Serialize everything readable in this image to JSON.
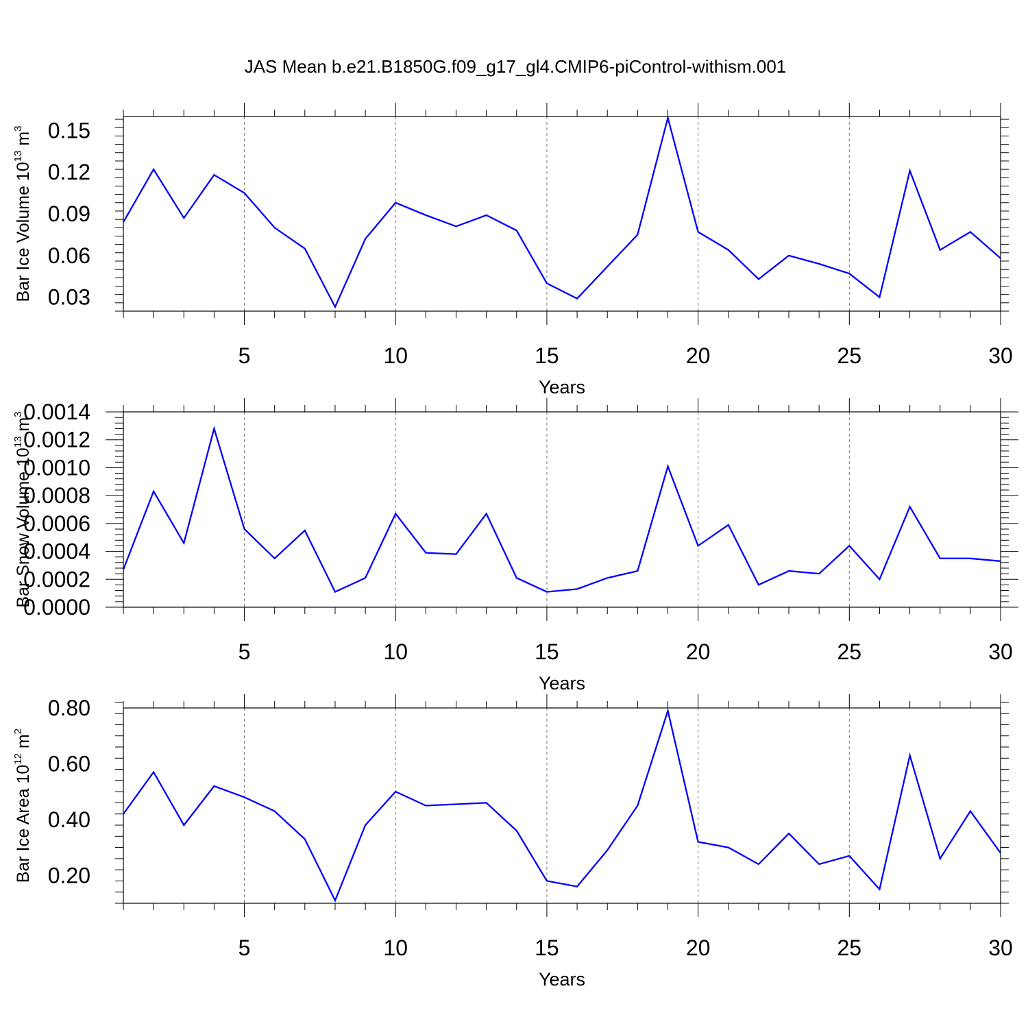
{
  "title": "JAS Mean b.e21.B1850G.f09_g17_gl4.CMIP6-piControl-withism.001",
  "colors": {
    "series": "#0000ff",
    "frame": "#000000",
    "grid": "#777777"
  },
  "chart_data": [
    {
      "type": "line",
      "xlabel": "Years",
      "ylabel": {
        "prefix": "Bar Ice Volume 10",
        "exp": "13",
        "unit": " m",
        "unit_exp": "3"
      },
      "xlim": [
        1,
        30
      ],
      "ylim": [
        0.02,
        0.16
      ],
      "xticks": [
        5,
        10,
        15,
        20,
        25,
        30
      ],
      "xtick_labels": [
        "5",
        "10",
        "15",
        "20",
        "25",
        "30"
      ],
      "yticks": [
        0.03,
        0.06,
        0.09,
        0.12,
        0.15
      ],
      "ytick_labels": [
        "0.03",
        "0.06",
        "0.09",
        "0.12",
        "0.15"
      ],
      "grid": "vertical dashed at major x ticks",
      "x": [
        1,
        2,
        3,
        4,
        5,
        6,
        7,
        8,
        9,
        10,
        11,
        12,
        13,
        14,
        15,
        16,
        17,
        18,
        19,
        20,
        21,
        22,
        23,
        24,
        25,
        26,
        27,
        28,
        29,
        30
      ],
      "y": [
        0.084,
        0.122,
        0.087,
        0.118,
        0.105,
        0.08,
        0.065,
        0.023,
        0.072,
        0.098,
        0.089,
        0.081,
        0.089,
        0.078,
        0.04,
        0.029,
        0.052,
        0.075,
        0.159,
        0.077,
        0.064,
        0.043,
        0.06,
        0.054,
        0.047,
        0.03,
        0.121,
        0.064,
        0.077,
        0.058
      ]
    },
    {
      "type": "line",
      "xlabel": "Years",
      "ylabel": {
        "prefix": "Bar Snow Volume 10",
        "exp": "13",
        "unit": " m",
        "unit_exp": "3"
      },
      "xlim": [
        1,
        30
      ],
      "ylim": [
        0.0,
        0.0014
      ],
      "xticks": [
        5,
        10,
        15,
        20,
        25,
        30
      ],
      "xtick_labels": [
        "5",
        "10",
        "15",
        "20",
        "25",
        "30"
      ],
      "yticks": [
        0.0,
        0.0002,
        0.0004,
        0.0006,
        0.0008,
        0.001,
        0.0012,
        0.0014
      ],
      "ytick_labels": [
        "0.0000",
        "0.0002",
        "0.0004",
        "0.0006",
        "0.0008",
        "0.0010",
        "0.0012",
        "0.0014"
      ],
      "grid": "vertical dashed at major x ticks",
      "x": [
        1,
        2,
        3,
        4,
        5,
        6,
        7,
        8,
        9,
        10,
        11,
        12,
        13,
        14,
        15,
        16,
        17,
        18,
        19,
        20,
        21,
        22,
        23,
        24,
        25,
        26,
        27,
        28,
        29,
        30
      ],
      "y": [
        0.00027,
        0.00083,
        0.00046,
        0.00128,
        0.00056,
        0.00035,
        0.00055,
        0.00011,
        0.00021,
        0.00067,
        0.00039,
        0.00038,
        0.00067,
        0.00021,
        0.00011,
        0.00013,
        0.00021,
        0.00026,
        0.00101,
        0.00044,
        0.00059,
        0.00016,
        0.00026,
        0.00024,
        0.00044,
        0.0002,
        0.00072,
        0.00035,
        0.00035,
        0.00033
      ]
    },
    {
      "type": "line",
      "xlabel": "Years",
      "ylabel": {
        "prefix": "Bar Ice Area 10",
        "exp": "12",
        "unit": " m",
        "unit_exp": "2"
      },
      "xlim": [
        1,
        30
      ],
      "ylim": [
        0.1,
        0.8
      ],
      "xticks": [
        5,
        10,
        15,
        20,
        25,
        30
      ],
      "xtick_labels": [
        "5",
        "10",
        "15",
        "20",
        "25",
        "30"
      ],
      "yticks": [
        0.2,
        0.4,
        0.6,
        0.8
      ],
      "ytick_labels": [
        "0.20",
        "0.40",
        "0.60",
        "0.80"
      ],
      "grid": "vertical dashed at major x ticks",
      "x": [
        1,
        2,
        3,
        4,
        5,
        6,
        7,
        8,
        9,
        10,
        11,
        12,
        13,
        14,
        15,
        16,
        17,
        18,
        19,
        20,
        21,
        22,
        23,
        24,
        25,
        26,
        27,
        28,
        29,
        30
      ],
      "y": [
        0.42,
        0.57,
        0.38,
        0.52,
        0.48,
        0.43,
        0.33,
        0.11,
        0.38,
        0.5,
        0.45,
        0.455,
        0.46,
        0.36,
        0.18,
        0.16,
        0.29,
        0.45,
        0.79,
        0.32,
        0.3,
        0.24,
        0.35,
        0.24,
        0.27,
        0.15,
        0.63,
        0.26,
        0.43,
        0.28
      ]
    }
  ]
}
